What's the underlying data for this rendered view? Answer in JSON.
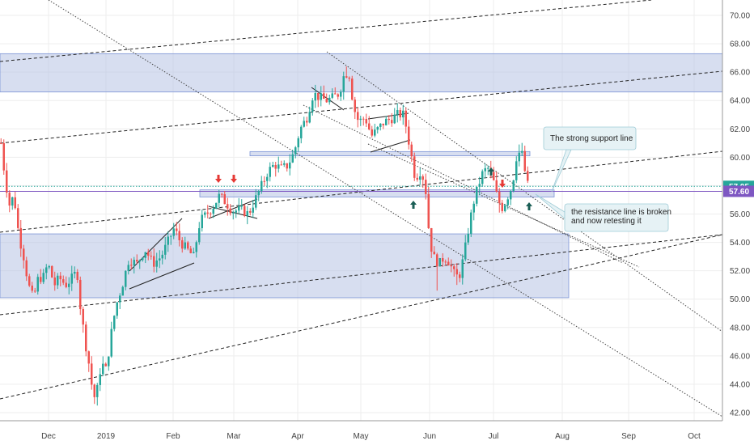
{
  "chart_data": {
    "type": "candlestick",
    "y_axis": {
      "min": 41.5,
      "max": 71,
      "ticks": [
        "42.00",
        "44.00",
        "46.00",
        "48.00",
        "50.00",
        "52.00",
        "54.00",
        "56.00",
        "58.00",
        "60.00",
        "62.00",
        "64.00",
        "66.00",
        "68.00",
        "70.00"
      ]
    },
    "x_axis": {
      "labels": [
        "Dec",
        "2019",
        "Feb",
        "Mar",
        "Apr",
        "May",
        "Jun",
        "Jul",
        "Aug",
        "Sep",
        "Oct"
      ]
    },
    "price_tags": [
      {
        "value": 57.95,
        "label": "57.95",
        "color": "#26a69a"
      },
      {
        "value": 57.6,
        "label": "57.60",
        "color": "#7e57c2"
      }
    ],
    "zones": [
      {
        "name": "upper-resistance-zone",
        "from": 64.6,
        "to": 67.3
      },
      {
        "name": "lower-demand-zone",
        "from": 50.1,
        "to": 54.6
      },
      {
        "name": "mid-resistance-zone",
        "from": 60.1,
        "to": 60.4
      },
      {
        "name": "support-zone",
        "from": 57.2,
        "to": 57.7
      }
    ],
    "annotations": [
      {
        "name": "support-callout",
        "lines": [
          "The strong support line"
        ]
      },
      {
        "name": "retest-callout",
        "lines": [
          "the resistance line is broken",
          "and now retesting it"
        ]
      }
    ],
    "colors": {
      "up": "#26a69a",
      "down": "#ef5350",
      "zone": "#b7c3e3",
      "arrow_up": "#1a5e55",
      "arrow_down": "#e53935"
    },
    "grid": true
  }
}
